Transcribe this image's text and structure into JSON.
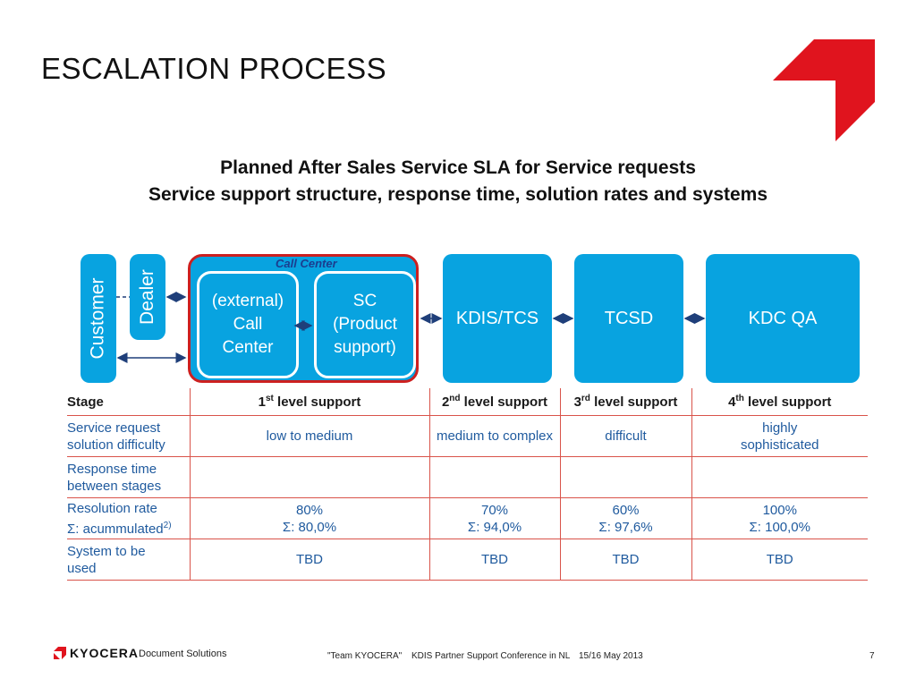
{
  "slide": {
    "title": "ESCALATION PROCESS",
    "subtitle_line1": "Planned After Sales Service SLA for Service requests",
    "subtitle_line2": "Service support structure, response time, solution rates and systems",
    "page_number": "7"
  },
  "diagram": {
    "customer": "Customer",
    "dealer": "Dealer",
    "call_center_label": "Call Center",
    "external_call_center": "(external)\nCall\nCenter",
    "sc_product_support": "SC\n(Product\nsupport)",
    "kdis_tcs": "KDIS/TCS",
    "tcsd": "TCSD",
    "kdc_qa": "KDC QA",
    "colors": {
      "box": "#08a3e0",
      "call_center_border": "#cc2020",
      "table_lines": "#d9534a"
    }
  },
  "table": {
    "header": {
      "stage": "Stage",
      "levels": [
        {
          "num": "1",
          "sup": "st",
          "rest": " level support"
        },
        {
          "num": "2",
          "sup": "nd",
          "rest": " level support"
        },
        {
          "num": "3",
          "sup": "rd",
          "rest": " level support"
        },
        {
          "num": "4",
          "sup": "th",
          "rest": " level support"
        }
      ]
    },
    "rows": [
      {
        "label": "Service request\nsolution difficulty",
        "cells": [
          "low to medium",
          "medium to complex",
          "difficult",
          "highly\nsophisticated"
        ]
      },
      {
        "label": "Response time\nbetween stages",
        "cells": [
          "",
          "",
          "",
          ""
        ]
      },
      {
        "label": "Resolution rate\nΣ: acummulated",
        "label_sup": "2)",
        "cells": [
          "80%\nΣ: 80,0%",
          "70%\nΣ: 94,0%",
          "60%\nΣ: 97,6%",
          "100%\nΣ: 100,0%"
        ]
      },
      {
        "label": "System to be\nused",
        "cells": [
          "TBD",
          "TBD",
          "TBD",
          "TBD"
        ]
      }
    ]
  },
  "footer": {
    "brand": "KYOCERA",
    "brand_suffix": "Document Solutions",
    "team": "\"Team KYOCERA\"",
    "event": "KDIS Partner Support Conference in NL",
    "date": "15/16 May 2013"
  }
}
